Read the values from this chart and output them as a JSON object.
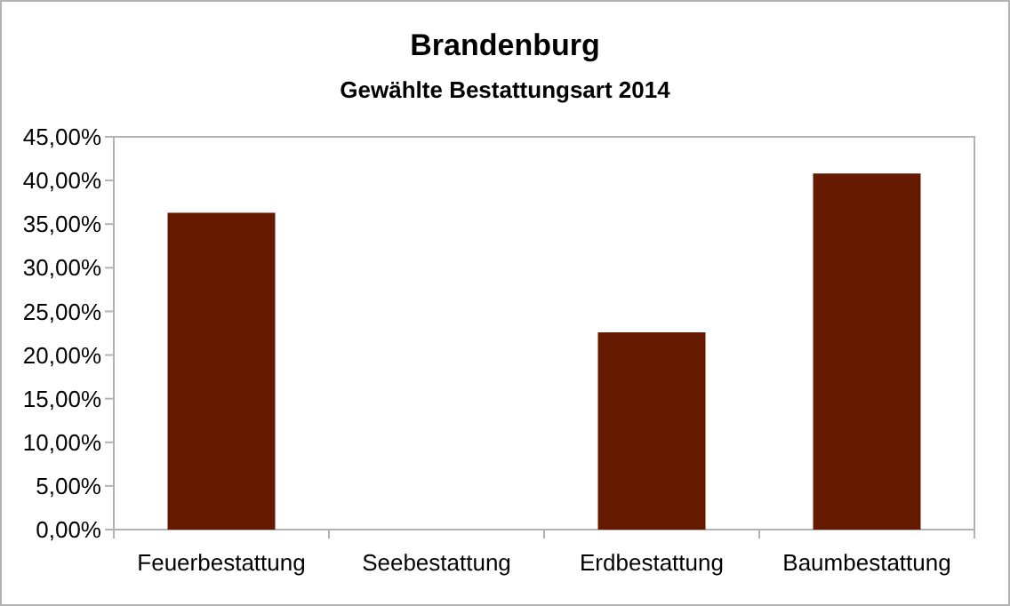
{
  "chart_data": {
    "type": "bar",
    "title": "Brandenburg",
    "subtitle": "Gewählte Bestattungsart 2014",
    "categories": [
      "Feuerbestattung",
      "Seebestattung",
      "Erdbestattung",
      "Baumbestattung"
    ],
    "values": [
      36.3,
      0,
      22.6,
      40.8
    ],
    "color": "#651a00",
    "ylim": [
      0,
      45
    ],
    "yticks": [
      {
        "value": 0,
        "label": "0,00%"
      },
      {
        "value": 5,
        "label": "5,00%"
      },
      {
        "value": 10,
        "label": "10,00%"
      },
      {
        "value": 15,
        "label": "15,00%"
      },
      {
        "value": 20,
        "label": "20,00%"
      },
      {
        "value": 25,
        "label": "25,00%"
      },
      {
        "value": 30,
        "label": "30,00%"
      },
      {
        "value": 35,
        "label": "35,00%"
      },
      {
        "value": 40,
        "label": "40,00%"
      },
      {
        "value": 45,
        "label": "45,00%"
      }
    ]
  }
}
